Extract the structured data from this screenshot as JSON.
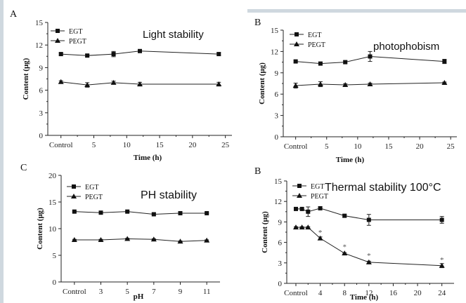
{
  "chart_data": [
    {
      "id": "A",
      "type": "line",
      "panel_letter": "A",
      "title": "Light stability",
      "xlabel": "Time (h)",
      "ylabel": "Content (μg)",
      "xlim": [
        -2,
        26
      ],
      "ylim": [
        0,
        15
      ],
      "xticks": [
        0,
        5,
        10,
        15,
        20,
        25
      ],
      "xticklabels": [
        "Control",
        "5",
        "10",
        "15",
        "20",
        "25"
      ],
      "yticks": [
        0,
        3,
        6,
        9,
        12,
        15
      ],
      "yticklabels": [
        "0",
        "3",
        "6",
        "9",
        "12",
        "15"
      ],
      "minor_ticks": true,
      "legend_position": "top-left",
      "series": [
        {
          "name": "EGT",
          "marker": "square",
          "x": [
            0,
            4,
            8,
            12,
            24
          ],
          "y": [
            10.8,
            10.6,
            10.8,
            11.2,
            10.8
          ],
          "err": [
            0.15,
            0.15,
            0.35,
            0.15,
            0.2
          ]
        },
        {
          "name": "PEGT",
          "marker": "triangle",
          "x": [
            0,
            4,
            8,
            12,
            24
          ],
          "y": [
            7.1,
            6.7,
            7.0,
            6.8,
            6.8
          ],
          "err": [
            0.15,
            0.3,
            0.2,
            0.25,
            0.25
          ]
        }
      ]
    },
    {
      "id": "B1",
      "type": "line",
      "panel_letter": "B",
      "title": "photophobism",
      "xlabel": "Time (h)",
      "ylabel": "Content (μg)",
      "xlim": [
        -2,
        26
      ],
      "ylim": [
        0,
        15
      ],
      "xticks": [
        0,
        5,
        10,
        15,
        20,
        25
      ],
      "xticklabels": [
        "Control",
        "5",
        "10",
        "15",
        "20",
        "25"
      ],
      "yticks": [
        0,
        3,
        6,
        9,
        12,
        15
      ],
      "yticklabels": [
        "0",
        "3",
        "6",
        "9",
        "12",
        "15"
      ],
      "minor_ticks": true,
      "legend_position": "top-left",
      "series": [
        {
          "name": "EGT",
          "marker": "square",
          "x": [
            0,
            4,
            8,
            12,
            24
          ],
          "y": [
            10.6,
            10.3,
            10.5,
            11.3,
            10.6
          ],
          "err": [
            0.15,
            0.2,
            0.2,
            0.7,
            0.3
          ]
        },
        {
          "name": "PEGT",
          "marker": "triangle",
          "x": [
            0,
            4,
            8,
            12,
            24
          ],
          "y": [
            7.2,
            7.4,
            7.3,
            7.4,
            7.6
          ],
          "err": [
            0.35,
            0.35,
            0.15,
            0.15,
            0.1
          ]
        }
      ]
    },
    {
      "id": "C",
      "type": "line",
      "panel_letter": "C",
      "title": "PH stability",
      "xlabel": "pH",
      "ylabel": "Content (μg)",
      "xlim": [
        0,
        12
      ],
      "ylim": [
        0,
        20
      ],
      "xticks": [
        1,
        3,
        5,
        7,
        9,
        11
      ],
      "xticklabels": [
        "Control",
        "3",
        "5",
        "7",
        "9",
        "11"
      ],
      "yticks": [
        0,
        5,
        10,
        15,
        20
      ],
      "yticklabels": [
        "0",
        "5",
        "10",
        "15",
        "20"
      ],
      "minor_ticks": false,
      "legend_position": "top-left",
      "series": [
        {
          "name": "EGT",
          "marker": "square",
          "x": [
            1,
            3,
            5,
            7,
            9,
            11
          ],
          "y": [
            13.2,
            13.0,
            13.2,
            12.7,
            12.9,
            12.9
          ],
          "err": [
            0.1,
            0.1,
            0.1,
            0.2,
            0.1,
            0.1
          ]
        },
        {
          "name": "PEGT",
          "marker": "triangle",
          "x": [
            1,
            3,
            5,
            7,
            9,
            11
          ],
          "y": [
            7.9,
            7.9,
            8.1,
            8.0,
            7.6,
            7.8
          ],
          "err": [
            0.1,
            0.1,
            0.1,
            0.1,
            0.1,
            0.1
          ]
        }
      ]
    },
    {
      "id": "B2",
      "type": "line",
      "panel_letter": "B",
      "title": "Thermal stability 100°C",
      "xlabel": "Time (h)",
      "ylabel": "Content (μg)",
      "xlim": [
        -1.5,
        26
      ],
      "ylim": [
        0,
        15
      ],
      "xticks": [
        0,
        4,
        8,
        12,
        16,
        20,
        24
      ],
      "xticklabels": [
        "Control",
        "4",
        "8",
        "12",
        "16",
        "20",
        "24"
      ],
      "yticks": [
        0,
        3,
        6,
        9,
        12,
        15
      ],
      "yticklabels": [
        "0",
        "3",
        "6",
        "9",
        "12",
        "15"
      ],
      "minor_ticks": true,
      "legend_position": "top-left",
      "series": [
        {
          "name": "EGT",
          "marker": "square",
          "x": [
            0,
            1,
            2,
            4,
            8,
            12,
            24
          ],
          "y": [
            10.9,
            10.9,
            10.5,
            11.0,
            9.9,
            9.3,
            9.3
          ],
          "err": [
            0.1,
            0.1,
            0.7,
            0.2,
            0.2,
            0.8,
            0.5
          ]
        },
        {
          "name": "PEGT",
          "marker": "triangle",
          "x": [
            0,
            1,
            2,
            4,
            8,
            12,
            24
          ],
          "y": [
            8.2,
            8.2,
            8.2,
            6.6,
            4.4,
            3.1,
            2.6
          ],
          "err": [
            0.1,
            0.1,
            0.1,
            0.2,
            0.1,
            0.15,
            0.3
          ]
        }
      ],
      "annotations": [
        {
          "text": "*",
          "x": 4,
          "y": 7.6
        },
        {
          "text": "*",
          "x": 8,
          "y": 5.5
        },
        {
          "text": "*",
          "x": 12,
          "y": 4.2
        },
        {
          "text": "*",
          "x": 24,
          "y": 3.6
        }
      ]
    }
  ]
}
